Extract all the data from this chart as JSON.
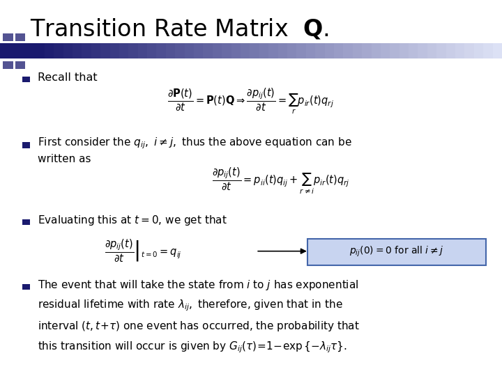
{
  "title": "Transition Rate Matrix  $\\mathbf{Q}$.",
  "title_fontsize": 24,
  "title_color": "#000000",
  "background_color": "#ffffff",
  "bullet_color": "#1a1a6e",
  "text_color": "#000000",
  "bar_color_left": "#1a1a6e",
  "bar_color_right": "#aaaacc",
  "bullet3_box_bg": "#c8d4f0",
  "bullet3_box_border": "#4466aa"
}
